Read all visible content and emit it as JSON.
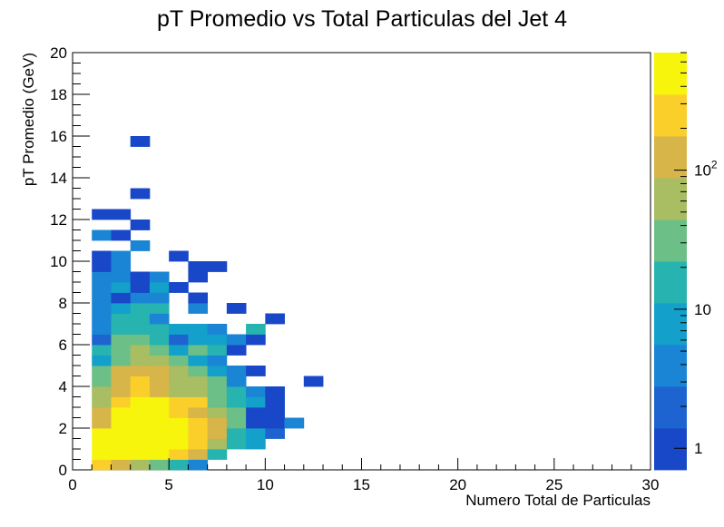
{
  "chart_data": {
    "type": "heatmap",
    "title": "pT Promedio vs Total Particulas del Jet 4",
    "xlabel": "Numero Total de Particulas",
    "ylabel": "pT Promedio (GeV)",
    "xlim": [
      0,
      30
    ],
    "ylim": [
      0,
      20
    ],
    "x_ticks": [
      0,
      5,
      10,
      15,
      20,
      25,
      30
    ],
    "y_ticks": [
      0,
      2,
      4,
      6,
      8,
      10,
      12,
      14,
      16,
      18,
      20
    ],
    "x_bin_width": 1,
    "y_bin_width": 0.5,
    "z_scale": "log",
    "zlim": [
      0.7,
      700
    ],
    "colorbar_ticks": [
      {
        "value": 1,
        "label": "1"
      },
      {
        "value": 10,
        "label": "10"
      },
      {
        "value": 100,
        "label": "10",
        "sup": "2"
      }
    ],
    "palette": [
      "#1847c8",
      "#1d64d0",
      "#1a85d4",
      "#13a0cb",
      "#27b3b0",
      "#6cbf86",
      "#a9bd63",
      "#d8b548",
      "#fbcf2a",
      "#f8f50d"
    ],
    "cells": [
      [
        1,
        0,
        300
      ],
      [
        2,
        0,
        130
      ],
      [
        3,
        0,
        70
      ],
      [
        4,
        0,
        35
      ],
      [
        5,
        0,
        15
      ],
      [
        6,
        0,
        5
      ],
      [
        1,
        0.5,
        400
      ],
      [
        2,
        0.5,
        500
      ],
      [
        3,
        0.5,
        500
      ],
      [
        4,
        0.5,
        500
      ],
      [
        5,
        0.5,
        350
      ],
      [
        6,
        0.5,
        150
      ],
      [
        7,
        0.5,
        20
      ],
      [
        1,
        1,
        400
      ],
      [
        2,
        1,
        1000
      ],
      [
        3,
        1,
        1000
      ],
      [
        4,
        1,
        1000
      ],
      [
        5,
        1,
        600
      ],
      [
        6,
        1,
        250
      ],
      [
        7,
        1,
        80
      ],
      [
        8,
        1,
        15
      ],
      [
        9,
        1,
        6
      ],
      [
        1,
        1.5,
        400
      ],
      [
        2,
        1.5,
        1000
      ],
      [
        3,
        1.5,
        1000
      ],
      [
        4,
        1.5,
        1000
      ],
      [
        5,
        1.5,
        550
      ],
      [
        6,
        1.5,
        300
      ],
      [
        7,
        1.5,
        120
      ],
      [
        8,
        1.5,
        20
      ],
      [
        9,
        1.5,
        10
      ],
      [
        10,
        1.5,
        1.5
      ],
      [
        1,
        2,
        150
      ],
      [
        2,
        2,
        450
      ],
      [
        3,
        2,
        1000
      ],
      [
        4,
        2,
        600
      ],
      [
        5,
        2,
        450
      ],
      [
        6,
        2,
        300
      ],
      [
        7,
        2,
        120
      ],
      [
        8,
        2,
        30
      ],
      [
        9,
        2,
        1
      ],
      [
        10,
        2,
        1
      ],
      [
        11,
        2,
        4
      ],
      [
        1,
        2.5,
        150
      ],
      [
        2,
        2.5,
        450
      ],
      [
        3,
        2.5,
        1000
      ],
      [
        4,
        2.5,
        500
      ],
      [
        5,
        2.5,
        300
      ],
      [
        6,
        2.5,
        150
      ],
      [
        7,
        2.5,
        60
      ],
      [
        8,
        2.5,
        40
      ],
      [
        9,
        2.5,
        1
      ],
      [
        10,
        2.5,
        1
      ],
      [
        1,
        3,
        60
      ],
      [
        2,
        3,
        250
      ],
      [
        3,
        3,
        400
      ],
      [
        4,
        3,
        400
      ],
      [
        5,
        3,
        250
      ],
      [
        6,
        3,
        200
      ],
      [
        7,
        3,
        30
      ],
      [
        8,
        3,
        12
      ],
      [
        9,
        3,
        8
      ],
      [
        10,
        3,
        1
      ],
      [
        1,
        3.5,
        60
      ],
      [
        2,
        3.5,
        120
      ],
      [
        3,
        3.5,
        200
      ],
      [
        4,
        3.5,
        150
      ],
      [
        5,
        3.5,
        80
      ],
      [
        6,
        3.5,
        80
      ],
      [
        7,
        3.5,
        30
      ],
      [
        8,
        3.5,
        12
      ],
      [
        9,
        3.5,
        4
      ],
      [
        10,
        3.5,
        1
      ],
      [
        1,
        4,
        30
      ],
      [
        2,
        4,
        120
      ],
      [
        3,
        4,
        200
      ],
      [
        4,
        4,
        150
      ],
      [
        5,
        4,
        80
      ],
      [
        6,
        4,
        60
      ],
      [
        7,
        4,
        40
      ],
      [
        8,
        4,
        3
      ],
      [
        12,
        4,
        1
      ],
      [
        1,
        4.5,
        30
      ],
      [
        2,
        4.5,
        100
      ],
      [
        3,
        4.5,
        100
      ],
      [
        4,
        4.5,
        100
      ],
      [
        5,
        4.5,
        60
      ],
      [
        6,
        4.5,
        30
      ],
      [
        7,
        4.5,
        8
      ],
      [
        8,
        4.5,
        3
      ],
      [
        9,
        4.5,
        1
      ],
      [
        1,
        5,
        8
      ],
      [
        2,
        5,
        40
      ],
      [
        3,
        5,
        60
      ],
      [
        4,
        5,
        60
      ],
      [
        5,
        5,
        30
      ],
      [
        6,
        5,
        8
      ],
      [
        7,
        5,
        4
      ],
      [
        1,
        5.5,
        20
      ],
      [
        2,
        5.5,
        30
      ],
      [
        3,
        5.5,
        60
      ],
      [
        4,
        5.5,
        40
      ],
      [
        5,
        5.5,
        8
      ],
      [
        6,
        5.5,
        30
      ],
      [
        7,
        5.5,
        12
      ],
      [
        8,
        5.5,
        1
      ],
      [
        1,
        6,
        2
      ],
      [
        2,
        6,
        30
      ],
      [
        3,
        6,
        30
      ],
      [
        4,
        6,
        20
      ],
      [
        5,
        6,
        2
      ],
      [
        6,
        6,
        6
      ],
      [
        7,
        6,
        8
      ],
      [
        8,
        6,
        4
      ],
      [
        9,
        6,
        1
      ],
      [
        1,
        6.5,
        4
      ],
      [
        2,
        6.5,
        12
      ],
      [
        3,
        6.5,
        20
      ],
      [
        4,
        6.5,
        12
      ],
      [
        5,
        6.5,
        8
      ],
      [
        6,
        6.5,
        8
      ],
      [
        7,
        6.5,
        4
      ],
      [
        9,
        6.5,
        15
      ],
      [
        1,
        7,
        4
      ],
      [
        2,
        7,
        12
      ],
      [
        3,
        7,
        12
      ],
      [
        4,
        7,
        4
      ],
      [
        10,
        7,
        1
      ],
      [
        1,
        7.5,
        4
      ],
      [
        2,
        7.5,
        8
      ],
      [
        3,
        7.5,
        12
      ],
      [
        4,
        7.5,
        12
      ],
      [
        6,
        7.5,
        4
      ],
      [
        8,
        7.5,
        1
      ],
      [
        1,
        8,
        4
      ],
      [
        2,
        8,
        1
      ],
      [
        3,
        8,
        4
      ],
      [
        4,
        8,
        4
      ],
      [
        6,
        8,
        1
      ],
      [
        1,
        8.5,
        4
      ],
      [
        2,
        8.5,
        8
      ],
      [
        3,
        8.5,
        1
      ],
      [
        4,
        8.5,
        8
      ],
      [
        5,
        8.5,
        1
      ],
      [
        1,
        9,
        4
      ],
      [
        2,
        9,
        4
      ],
      [
        3,
        9,
        1
      ],
      [
        4,
        9,
        4
      ],
      [
        6,
        9,
        1
      ],
      [
        1,
        9.5,
        1
      ],
      [
        2,
        9.5,
        4
      ],
      [
        6,
        9.5,
        1
      ],
      [
        7,
        9.5,
        1
      ],
      [
        1,
        10,
        1
      ],
      [
        2,
        10,
        4
      ],
      [
        5,
        10,
        1
      ],
      [
        3,
        10.5,
        4
      ],
      [
        1,
        11,
        4
      ],
      [
        2,
        11,
        1
      ],
      [
        3,
        11.5,
        1
      ],
      [
        1,
        12,
        1
      ],
      [
        2,
        12,
        1
      ],
      [
        3,
        13,
        1
      ],
      [
        3,
        15.5,
        1
      ]
    ]
  }
}
